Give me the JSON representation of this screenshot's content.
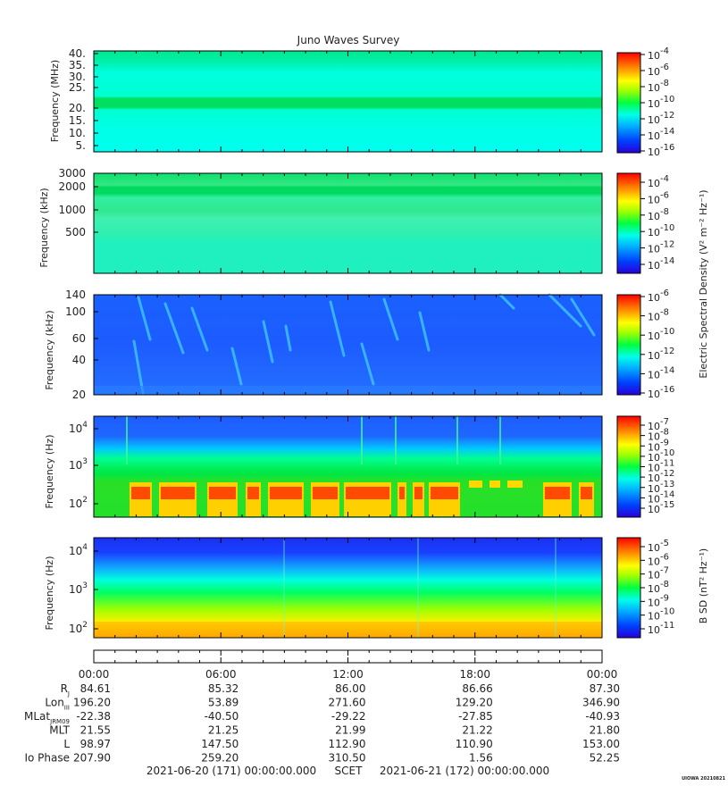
{
  "title": "Juno Waves Survey",
  "panels": [
    {
      "ylabel": "Frequency (MHz)",
      "yticks": [
        "40.",
        "35.",
        "30.",
        "25.",
        "20.",
        "15.",
        "10.",
        "5."
      ],
      "cb_ticks": [
        [
          "10",
          "-4"
        ],
        [
          "10",
          "-6"
        ],
        [
          "10",
          "-8"
        ],
        [
          "10",
          "-10"
        ],
        [
          "10",
          "-12"
        ],
        [
          "10",
          "-14"
        ],
        [
          "10",
          "-16"
        ]
      ]
    },
    {
      "ylabel": "Frequency (kHz)",
      "yticks": [
        "3000",
        "2000",
        "1000",
        "500"
      ],
      "cb_ticks": [
        [
          "10",
          "-4"
        ],
        [
          "10",
          "-6"
        ],
        [
          "10",
          "-8"
        ],
        [
          "10",
          "-10"
        ],
        [
          "10",
          "-12"
        ],
        [
          "10",
          "-14"
        ]
      ]
    },
    {
      "ylabel": "Frequency (kHz)",
      "yticks": [
        "140",
        "100",
        "60",
        "40",
        "20"
      ],
      "cb_ticks": [
        [
          "10",
          "-6"
        ],
        [
          "10",
          "-8"
        ],
        [
          "10",
          "-10"
        ],
        [
          "10",
          "-12"
        ],
        [
          "10",
          "-14"
        ],
        [
          "10",
          "-16"
        ]
      ]
    },
    {
      "ylabel": "Frequency (Hz)",
      "yticks": [
        [
          "10",
          "4"
        ],
        [
          "10",
          "3"
        ],
        [
          "10",
          "2"
        ]
      ],
      "cb_ticks": [
        [
          "10",
          "-7"
        ],
        [
          "10",
          "-8"
        ],
        [
          "10",
          "-9"
        ],
        [
          "10",
          "-10"
        ],
        [
          "10",
          "-11"
        ],
        [
          "10",
          "-12"
        ],
        [
          "10",
          "-13"
        ],
        [
          "10",
          "-14"
        ],
        [
          "10",
          "-15"
        ]
      ]
    },
    {
      "ylabel": "Frequency (Hz)",
      "yticks": [
        [
          "10",
          "4"
        ],
        [
          "10",
          "3"
        ],
        [
          "10",
          "2"
        ]
      ],
      "cb_ticks": [
        [
          "10",
          "-5"
        ],
        [
          "10",
          "-6"
        ],
        [
          "10",
          "-7"
        ],
        [
          "10",
          "-8"
        ],
        [
          "10",
          "-9"
        ],
        [
          "10",
          "-10"
        ],
        [
          "10",
          "-11"
        ]
      ]
    }
  ],
  "e_cb_label": "Electric Spectral Density (V² m⁻² Hz⁻¹)",
  "b_cb_label": "B SD (nT² Hz⁻¹)",
  "time_ticks": [
    "00:00",
    "06:00",
    "12:00",
    "18:00",
    "00:00"
  ],
  "ephemeris": [
    {
      "label": "R",
      "sub": "J",
      "values": [
        "84.61",
        "85.32",
        "86.00",
        "86.66",
        "87.30"
      ]
    },
    {
      "label": "Lon",
      "sub": "III",
      "values": [
        "196.20",
        "53.89",
        "271.60",
        "129.20",
        "346.90"
      ]
    },
    {
      "label": "MLat",
      "sub": "JRM09",
      "values": [
        "-22.38",
        "-40.50",
        "-29.22",
        "-27.85",
        "-40.93"
      ]
    },
    {
      "label": "MLT",
      "sub": "",
      "values": [
        "21.55",
        "21.25",
        "21.99",
        "21.22",
        "21.80"
      ]
    },
    {
      "label": "L",
      "sub": "",
      "values": [
        "98.97",
        "147.50",
        "112.90",
        "110.90",
        "153.00"
      ]
    },
    {
      "label": "Io Phase",
      "sub": "",
      "values": [
        "207.90",
        "259.20",
        "310.50",
        "1.56",
        "52.25"
      ]
    }
  ],
  "footer": {
    "start": "2021-06-20 (171) 00:00:00.000",
    "scet": "SCET",
    "end": "2021-06-21 (172) 00:00:00.000"
  },
  "credit": "UIOWA 20210821",
  "colors": {
    "cyan": "#00ffee",
    "blue": "#1d5cff",
    "green": "#00e070",
    "red": "#ff2000",
    "yellow": "#ffee00"
  },
  "chart_data": {
    "type": "heatmap",
    "title": "Juno Waves Survey",
    "x_range": [
      "2021-06-20T00:00",
      "2021-06-21T00:00"
    ],
    "xlabel": "SCET",
    "panels": [
      {
        "ylabel": "Frequency (MHz)",
        "ylim": [
          3,
          41
        ],
        "colorbar_range": [
          "1e-16",
          "1e-4"
        ],
        "colorbar_label": "Electric Spectral Density (V² m⁻² Hz⁻¹)"
      },
      {
        "ylabel": "Frequency (kHz)",
        "ylim": [
          140,
          3000
        ],
        "scale": "log",
        "colorbar_range": [
          "1e-14",
          "1e-4"
        ],
        "colorbar_label": "Electric Spectral Density (V² m⁻² Hz⁻¹)"
      },
      {
        "ylabel": "Frequency (kHz)",
        "ylim": [
          20,
          140
        ],
        "scale": "log",
        "colorbar_range": [
          "1e-16",
          "1e-6"
        ],
        "colorbar_label": "Electric Spectral Density (V² m⁻² Hz⁻¹)"
      },
      {
        "ylabel": "Frequency (Hz)",
        "ylim": [
          50,
          20000
        ],
        "scale": "log",
        "colorbar_range": [
          "1e-15",
          "1e-7"
        ],
        "colorbar_label": "Electric Spectral Density (V² m⁻² Hz⁻¹)"
      },
      {
        "ylabel": "Frequency (Hz)",
        "ylim": [
          50,
          20000
        ],
        "scale": "log",
        "colorbar_range": [
          "1e-11",
          "1e-5"
        ],
        "colorbar_label": "B SD (nT² Hz⁻¹)"
      }
    ]
  }
}
